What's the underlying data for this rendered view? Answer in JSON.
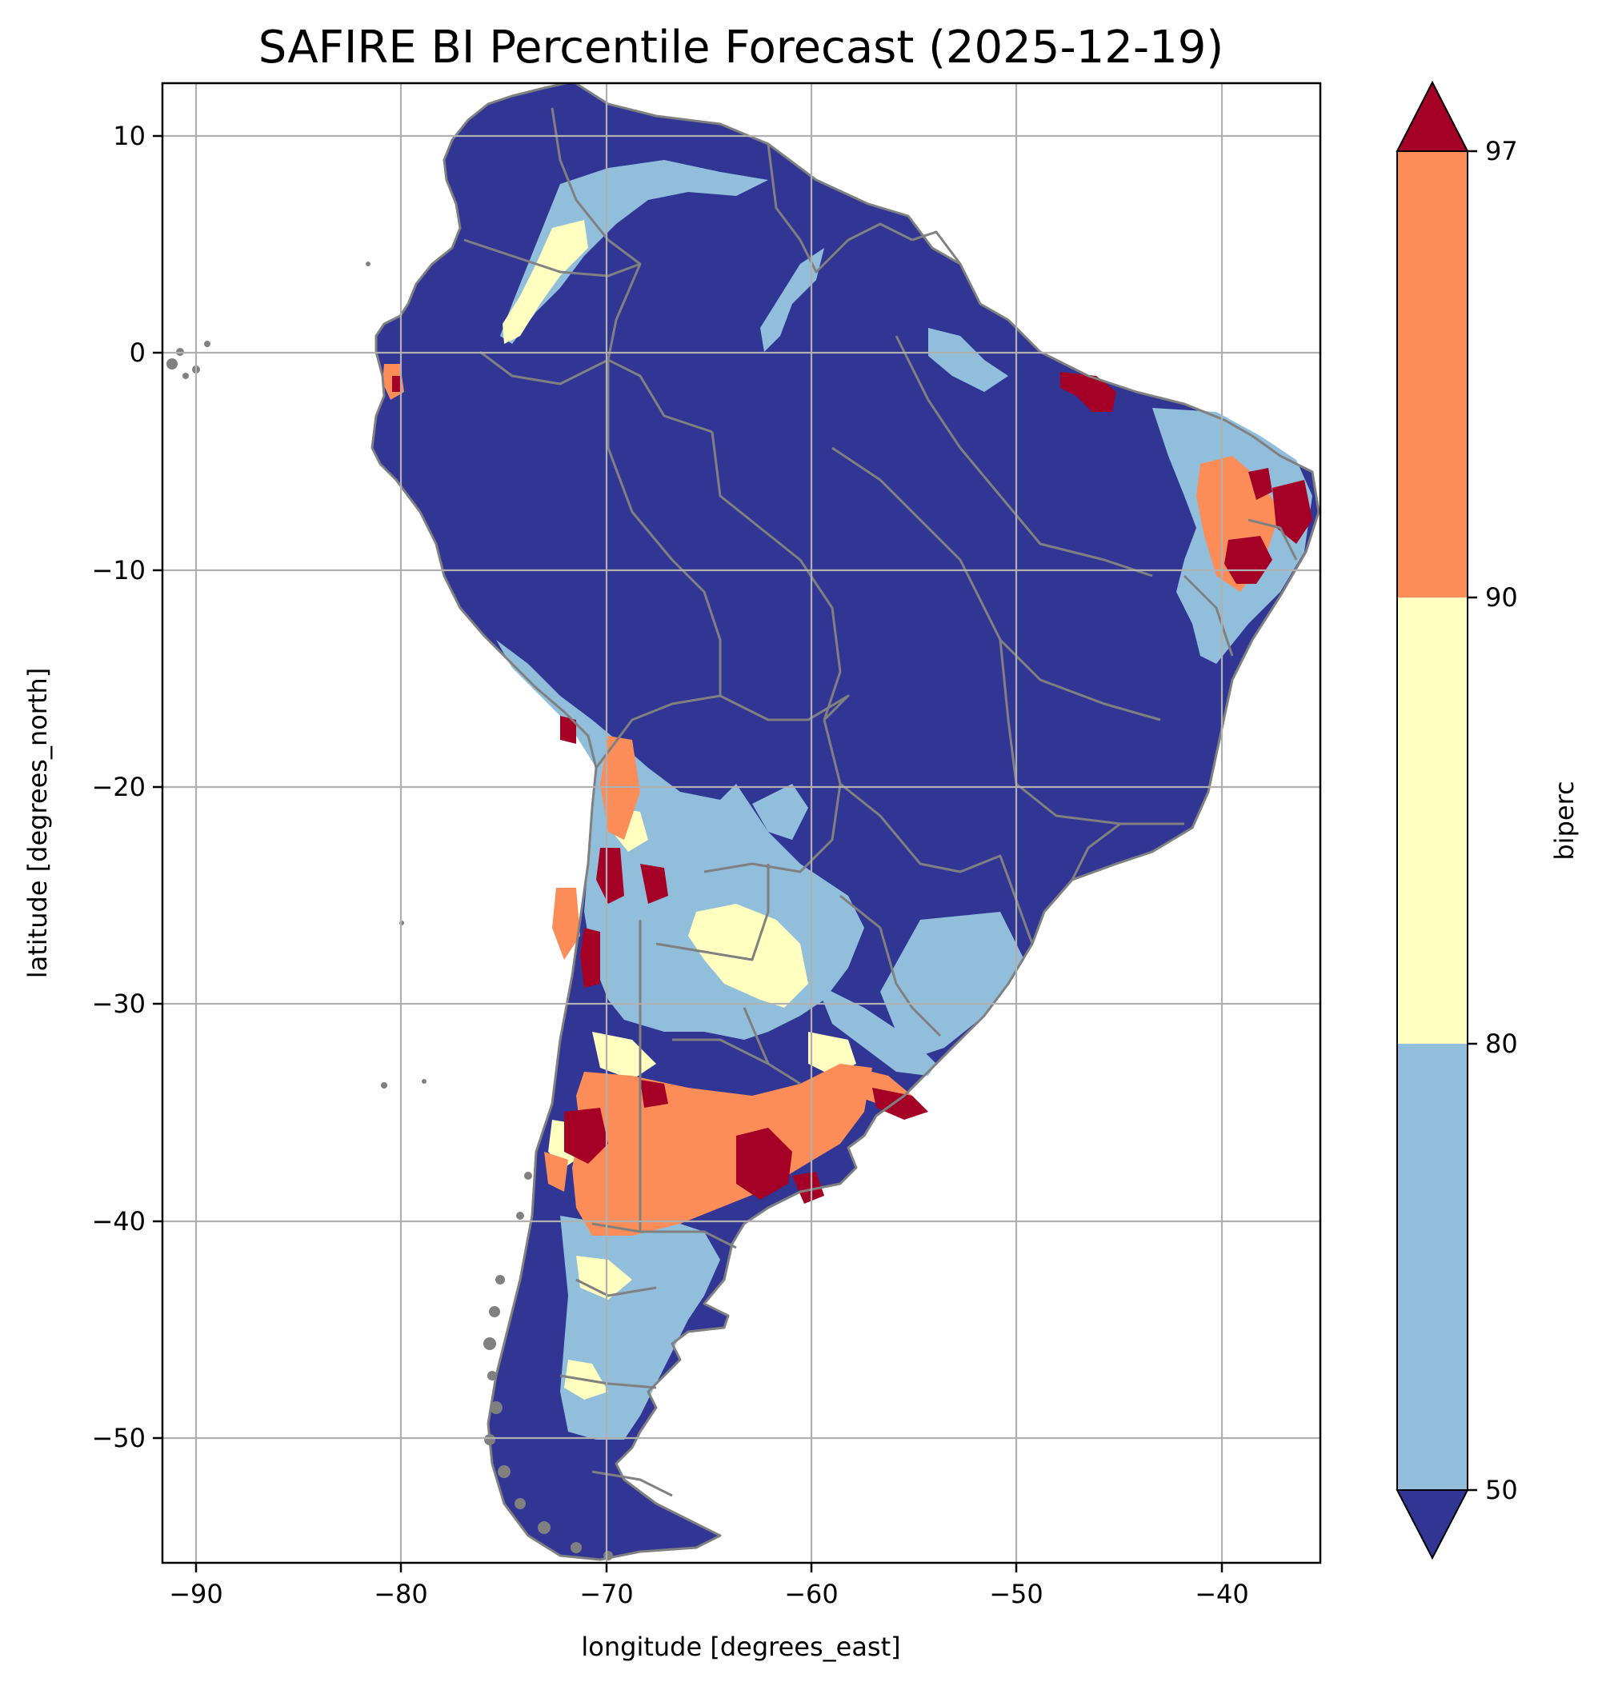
{
  "title": "SAFIRE BI Percentile Forecast (2025-12-19)",
  "axes": {
    "xlabel": "longitude [degrees_east]",
    "ylabel": "latitude [degrees_north]",
    "xlim": [
      -91.6,
      -35.2
    ],
    "ylim": [
      -55.9,
      12.3
    ],
    "xticks": [
      -90,
      -80,
      -70,
      -60,
      -50,
      -40
    ],
    "yticks": [
      10,
      0,
      -10,
      -20,
      -30,
      -40,
      -50
    ],
    "grid": true
  },
  "colorbar": {
    "label": "biperc",
    "levels": [
      50,
      80,
      90,
      97
    ],
    "tick_labels": [
      "50",
      "80",
      "90",
      "97"
    ],
    "extend": "both",
    "colors": {
      "below_50": "#313695",
      "50_80": "#91bfdb",
      "80_90": "#ffffbf",
      "90_97": "#fc8d59",
      "above_97": "#a50026"
    }
  },
  "map": {
    "region": "South America",
    "coastline_color": "#808080",
    "background_class": "below_50"
  }
}
